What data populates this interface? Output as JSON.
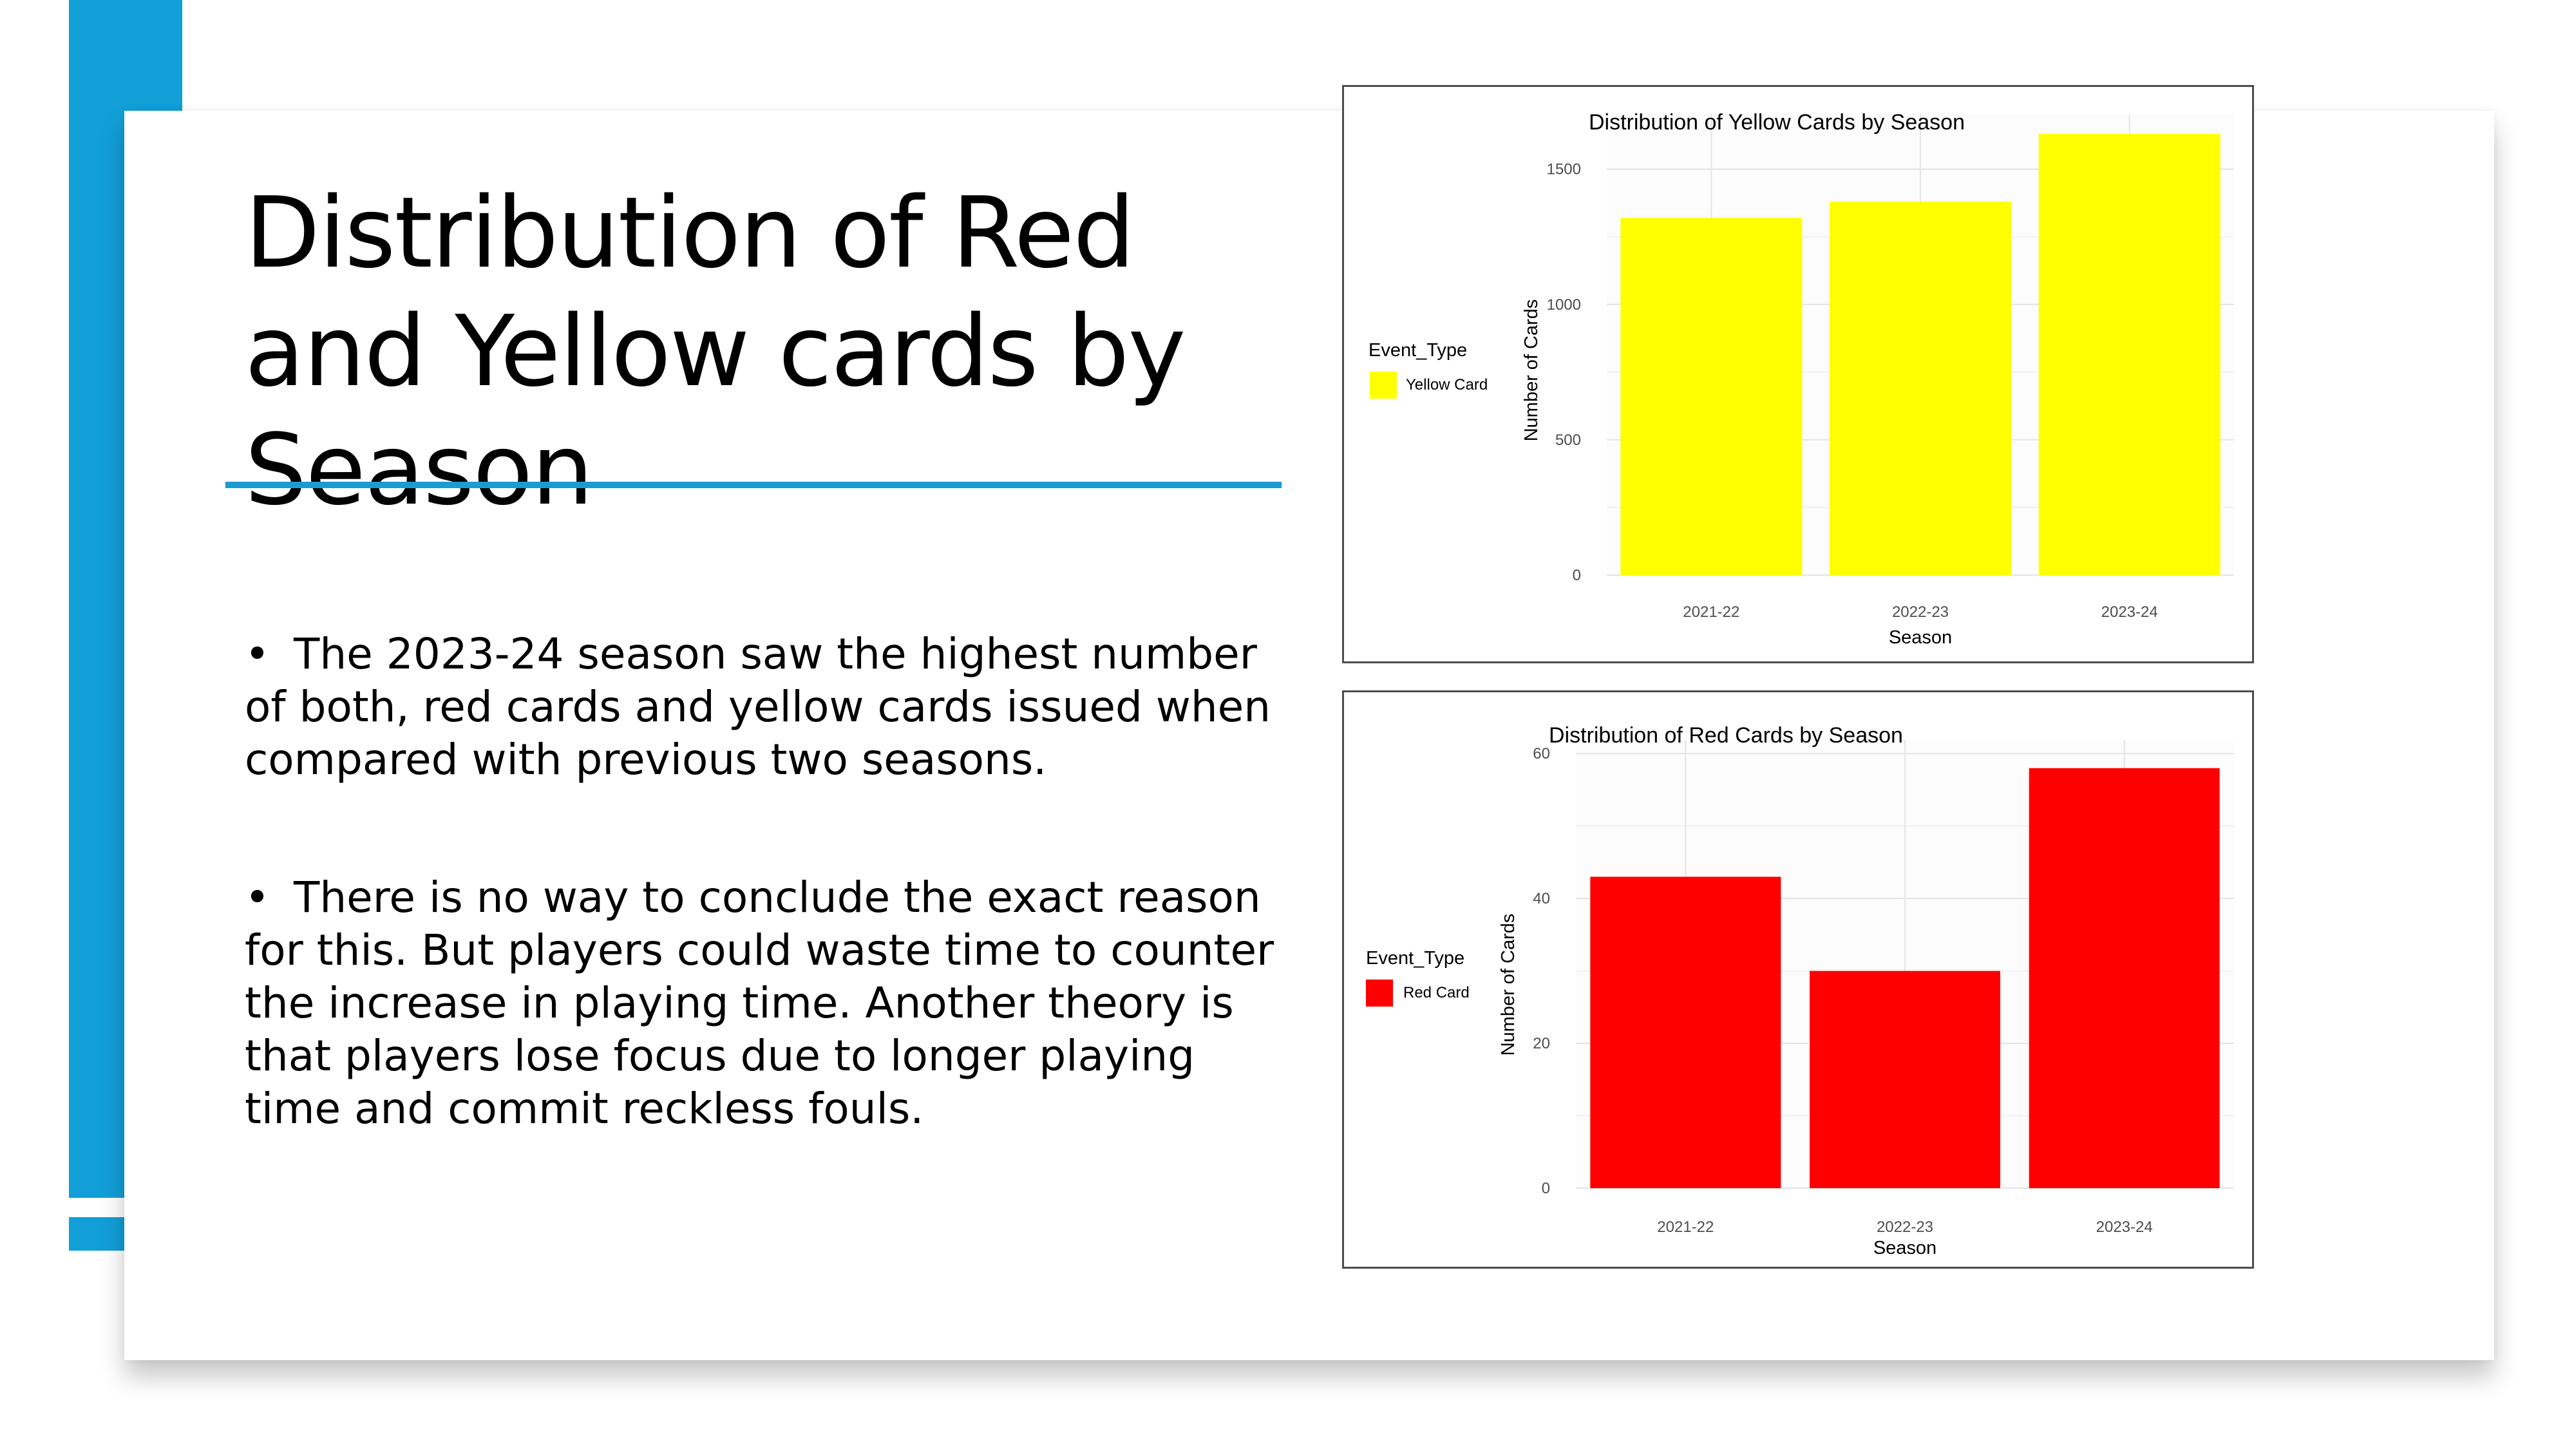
{
  "slide": {
    "title": "Distribution of Red and Yellow cards by Season",
    "bullets": [
      "The 2023-24 season saw the highest number of both, red cards and yellow cards issued when compared with previous two seasons.",
      "There is no way to conclude the exact reason for this. But players could waste time to counter the increase in playing time. Another theory is that players lose focus due to longer playing time and commit reckless fouls."
    ],
    "accent_color": "#129fd8"
  },
  "chart_data": [
    {
      "type": "bar",
      "title": "Distribution of Yellow Cards by Season",
      "xlabel": "Season",
      "ylabel": "Number of Cards",
      "categories": [
        "2021-22",
        "2022-23",
        "2023-24"
      ],
      "series": [
        {
          "name": "Yellow Card",
          "values": [
            1320,
            1380,
            1630
          ],
          "color": "#ffff00"
        }
      ],
      "ylim": [
        0,
        1680
      ],
      "yticks": [
        0,
        500,
        1000,
        1500
      ],
      "legend": {
        "title": "Event_Type",
        "placement": "left"
      },
      "grid": true
    },
    {
      "type": "bar",
      "title": "Distribution of Red Cards by Season",
      "xlabel": "Season",
      "ylabel": "Number of Cards",
      "categories": [
        "2021-22",
        "2022-23",
        "2023-24"
      ],
      "series": [
        {
          "name": "Red Card",
          "values": [
            43,
            30,
            58
          ],
          "color": "#ff0000"
        }
      ],
      "ylim": [
        0,
        61
      ],
      "yticks": [
        0,
        20,
        40,
        60
      ],
      "legend": {
        "title": "Event_Type",
        "placement": "left"
      },
      "grid": true
    }
  ]
}
